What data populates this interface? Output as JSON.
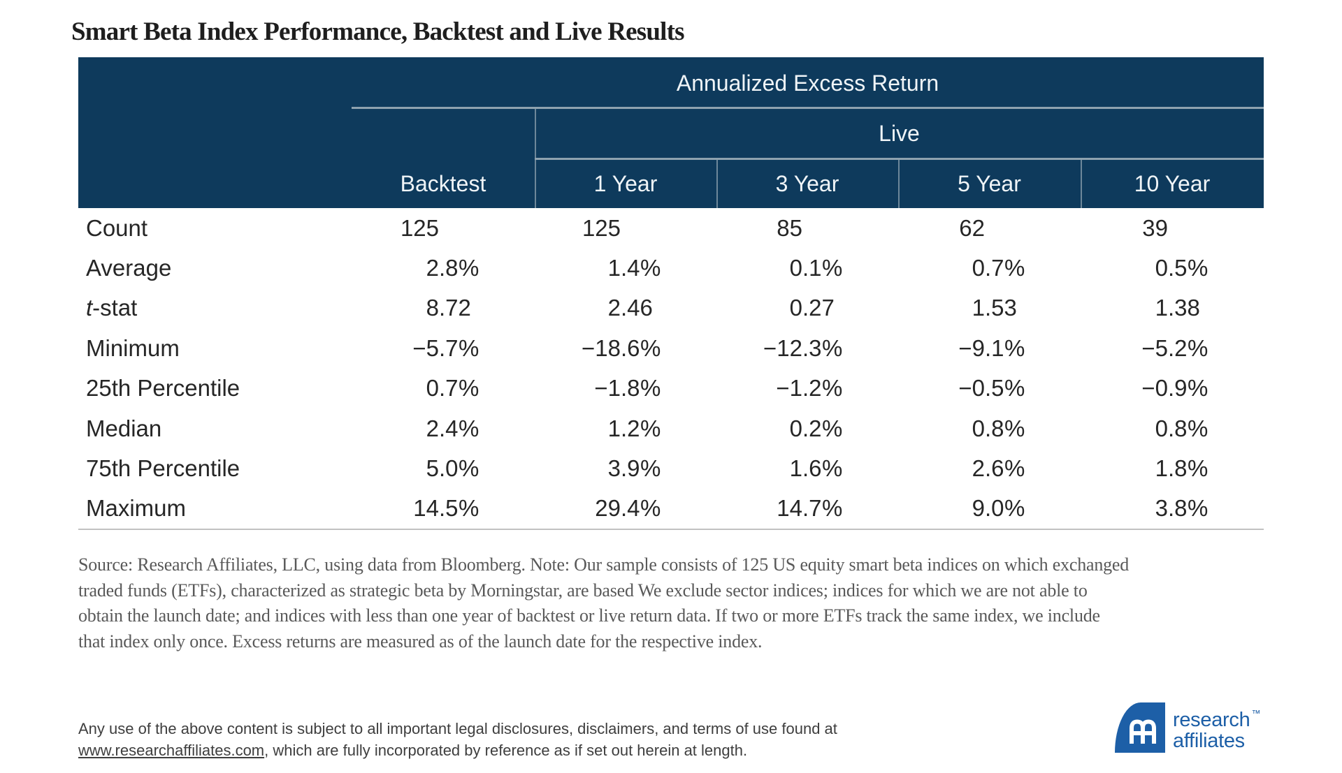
{
  "title": "Smart Beta Index Performance, Backtest and Live Results",
  "table": {
    "top_header": "Annualized Excess Return",
    "live_header": "Live",
    "columns": [
      "Backtest",
      "1 Year",
      "3 Year",
      "5 Year",
      "10 Year"
    ],
    "rows": [
      {
        "label": "Count",
        "italic_first": false,
        "values": [
          "125",
          "125",
          "85",
          "62",
          "39"
        ]
      },
      {
        "label": "Average",
        "italic_first": false,
        "values": [
          "2.8%",
          "1.4%",
          "0.1%",
          "0.7%",
          "0.5%"
        ]
      },
      {
        "label": "t-stat",
        "italic_first": true,
        "values": [
          "8.72",
          "2.46",
          "0.27",
          "1.53",
          "1.38"
        ]
      },
      {
        "label": "Minimum",
        "italic_first": false,
        "values": [
          "−5.7%",
          "−18.6%",
          "−12.3%",
          "−9.1%",
          "−5.2%"
        ]
      },
      {
        "label": "25th Percentile",
        "italic_first": false,
        "values": [
          "0.7%",
          "−1.8%",
          "−1.2%",
          "−0.5%",
          "−0.9%"
        ]
      },
      {
        "label": "Median",
        "italic_first": false,
        "values": [
          "2.4%",
          "1.2%",
          "0.2%",
          "0.8%",
          "0.8%"
        ]
      },
      {
        "label": "75th Percentile",
        "italic_first": false,
        "values": [
          "5.0%",
          "3.9%",
          "1.6%",
          "2.6%",
          "1.8%"
        ]
      },
      {
        "label": "Maximum",
        "italic_first": false,
        "values": [
          "14.5%",
          "29.4%",
          "14.7%",
          "9.0%",
          "3.8%"
        ]
      }
    ]
  },
  "source_note_lines": [
    "Source: Research Affiliates, LLC, using data from Bloomberg. Note: Our sample consists of 125 US equity smart beta indices on which exchanged",
    "traded funds (ETFs), characterized as strategic beta by Morningstar, are based We exclude sector indices; indices for which we are not able to",
    "obtain the launch date; and indices with less than one year of backtest or live return data. If two or more ETFs track the same index, we include",
    "that index only once. Excess returns are measured as of the launch date for the respective index."
  ],
  "disclaimer": {
    "before_link": "Any use of the above content is subject to all important legal disclosures, disclaimers, and terms of use found at",
    "link": "www.researchaffiliates.com",
    "after_link": ", which are fully incorporated by reference as if set out herein at length."
  },
  "logo": {
    "line1": "research",
    "tm": "™",
    "line2": "affiliates"
  },
  "colors": {
    "navy": "#0e3a5c",
    "rule": "#8ea2af",
    "header-text": "#eff4f7",
    "body-text": "#262626",
    "border-gray": "#c1c1c1",
    "source-gray": "#595959",
    "disclaimer-gray": "#3e3e3e",
    "logo-blue": "#1d5fa7"
  }
}
